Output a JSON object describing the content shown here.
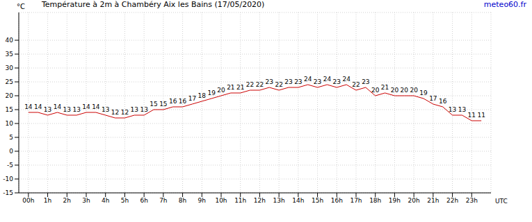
{
  "chart_data": {
    "type": "line",
    "title": "Température à 2m à Chambéry Aix les Bains (17/05/2020)",
    "source": "meteo60.fr",
    "y_label": "°C",
    "x_label": "UTC",
    "x": [
      0,
      0.5,
      1,
      1.5,
      2,
      2.5,
      3,
      3.5,
      4,
      4.5,
      5,
      5.5,
      6,
      6.5,
      7,
      7.5,
      8,
      8.5,
      9,
      9.5,
      10,
      10.5,
      11,
      11.5,
      12,
      12.5,
      13,
      13.5,
      14,
      14.5,
      15,
      15.5,
      16,
      16.5,
      17,
      17.5,
      18,
      18.5,
      19,
      19.5,
      20,
      20.5,
      21,
      21.5,
      22,
      22.5,
      23,
      23.5
    ],
    "values": [
      14,
      14,
      13,
      14,
      13,
      13,
      14,
      14,
      13,
      12,
      12,
      13,
      13,
      15,
      15,
      16,
      16,
      17,
      18,
      19,
      20,
      21,
      21,
      22,
      22,
      23,
      22,
      23,
      23,
      24,
      23,
      24,
      23,
      24,
      22,
      23,
      20,
      21,
      20,
      20,
      20,
      19,
      17,
      16,
      13,
      13,
      11,
      11
    ],
    "color": "#cc0000",
    "xlim": [
      -0.5,
      24
    ],
    "xticks": [
      {
        "value": 0,
        "label": "00h"
      },
      {
        "value": 1,
        "label": "1h"
      },
      {
        "value": 2,
        "label": "2h"
      },
      {
        "value": 3,
        "label": "3h"
      },
      {
        "value": 4,
        "label": "4h"
      },
      {
        "value": 5,
        "label": "5h"
      },
      {
        "value": 6,
        "label": "6h"
      },
      {
        "value": 7,
        "label": "7h"
      },
      {
        "value": 8,
        "label": "8h"
      },
      {
        "value": 9,
        "label": "9h"
      },
      {
        "value": 10,
        "label": "10h"
      },
      {
        "value": 11,
        "label": "11h"
      },
      {
        "value": 12,
        "label": "12h"
      },
      {
        "value": 13,
        "label": "13h"
      },
      {
        "value": 14,
        "label": "14h"
      },
      {
        "value": 15,
        "label": "15h"
      },
      {
        "value": 16,
        "label": "16h"
      },
      {
        "value": 17,
        "label": "17h"
      },
      {
        "value": 18,
        "label": "18h"
      },
      {
        "value": 19,
        "label": "19h"
      },
      {
        "value": 20,
        "label": "20h"
      },
      {
        "value": 21,
        "label": "21h"
      },
      {
        "value": 22,
        "label": "22h"
      },
      {
        "value": 23,
        "label": "23h"
      }
    ],
    "ylim": [
      -15,
      50
    ],
    "yticks": [
      -15,
      -10,
      -5,
      0,
      5,
      10,
      15,
      20,
      25,
      30,
      35,
      40
    ],
    "grid": true,
    "data_labels": true
  }
}
